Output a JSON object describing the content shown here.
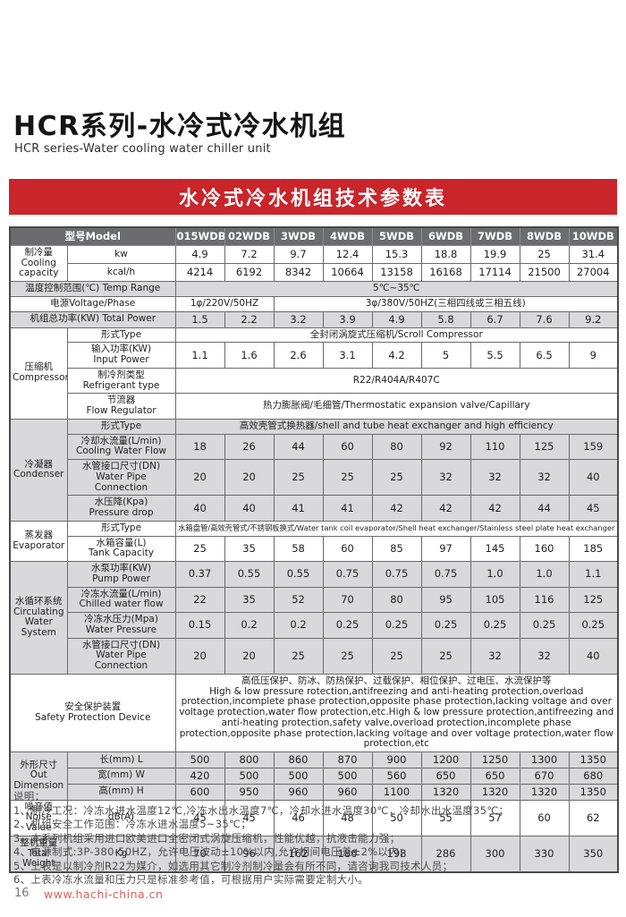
{
  "page": {
    "title": "HCR系列-水冷式冷水机组",
    "subtitle": "HCR series-Water cooling water chiller unit"
  },
  "banner": {
    "title": "水冷式冷水机组技术参数表"
  },
  "colors": {
    "banner_red": "#c9252b",
    "table_header_gray": "#6b6c6e",
    "row_shade_gray": "#d9d9db",
    "url_red": "#d8605a"
  },
  "table": {
    "rows": [
      {
        "head": true,
        "cells": [
          {
            "t": "型号Model",
            "cs": 2
          },
          {
            "t": "015WDB"
          },
          {
            "t": "02WDB"
          },
          {
            "t": "3WDB"
          },
          {
            "t": "4WDB"
          },
          {
            "t": "5WDB"
          },
          {
            "t": "6WDB"
          },
          {
            "t": "7WDB"
          },
          {
            "t": "8WDB"
          },
          {
            "t": "10WDB"
          }
        ]
      },
      {
        "cells": [
          {
            "t": "制冷量\nCooling capacity",
            "rs": 2,
            "c": "lbl"
          },
          {
            "t": "kw",
            "c": "sub"
          },
          {
            "t": "4.9",
            "c": "num"
          },
          {
            "t": "7.2",
            "c": "num"
          },
          {
            "t": "9.7",
            "c": "num"
          },
          {
            "t": "12.4",
            "c": "num"
          },
          {
            "t": "15.3",
            "c": "num"
          },
          {
            "t": "18.8",
            "c": "num"
          },
          {
            "t": "19.9",
            "c": "num"
          },
          {
            "t": "25",
            "c": "num"
          },
          {
            "t": "31.4",
            "c": "num"
          }
        ]
      },
      {
        "cells": [
          {
            "t": "kcal/h",
            "c": "sub"
          },
          {
            "t": "4214",
            "c": "num"
          },
          {
            "t": "6192",
            "c": "num"
          },
          {
            "t": "8342",
            "c": "num"
          },
          {
            "t": "10664",
            "c": "num"
          },
          {
            "t": "13158",
            "c": "num"
          },
          {
            "t": "16168",
            "c": "num"
          },
          {
            "t": "17114",
            "c": "num"
          },
          {
            "t": "21500",
            "c": "num"
          },
          {
            "t": "27004",
            "c": "num"
          }
        ]
      },
      {
        "shade": true,
        "cells": [
          {
            "t": "温度控制范围(℃) Temp Range",
            "cs": 2,
            "c": "lbl"
          },
          {
            "t": "5℃~35℃",
            "cs": 9,
            "c": "txt"
          }
        ]
      },
      {
        "cells": [
          {
            "t": "电源Voltage/Phase",
            "cs": 2,
            "c": "lbl"
          },
          {
            "t": "1φ/220V/50HZ",
            "cs": 2,
            "c": "txt"
          },
          {
            "t": "3φ/380V/50HZ(三相四线或三相五线)",
            "cs": 7,
            "c": "txt"
          }
        ]
      },
      {
        "shade": true,
        "cells": [
          {
            "t": "机组总功率(KW) Total Power",
            "cs": 2,
            "c": "lbl"
          },
          {
            "t": "1.5",
            "c": "num"
          },
          {
            "t": "2.2",
            "c": "num"
          },
          {
            "t": "3.2",
            "c": "num"
          },
          {
            "t": "3.9",
            "c": "num"
          },
          {
            "t": "4.9",
            "c": "num"
          },
          {
            "t": "5.8",
            "c": "num"
          },
          {
            "t": "6.7",
            "c": "num"
          },
          {
            "t": "7.6",
            "c": "num"
          },
          {
            "t": "9.2",
            "c": "num"
          }
        ]
      },
      {
        "cells": [
          {
            "t": "压缩机\nCompressor",
            "rs": 4,
            "c": "lbl"
          },
          {
            "t": "形式Type",
            "c": "sub"
          },
          {
            "t": "全封闭涡旋式压缩机/Scroll Compressor",
            "cs": 9,
            "c": "txt"
          }
        ]
      },
      {
        "cells": [
          {
            "t": "输入功率(KW)\nInput Power",
            "c": "sub"
          },
          {
            "t": "1.1",
            "c": "num"
          },
          {
            "t": "1.6",
            "c": "num"
          },
          {
            "t": "2.6",
            "c": "num"
          },
          {
            "t": "3.1",
            "c": "num"
          },
          {
            "t": "4.2",
            "c": "num"
          },
          {
            "t": "5",
            "c": "num"
          },
          {
            "t": "5.5",
            "c": "num"
          },
          {
            "t": "6.5",
            "c": "num"
          },
          {
            "t": "9",
            "c": "num"
          }
        ]
      },
      {
        "cells": [
          {
            "t": "制冷剂类型\nRefrigerant type",
            "c": "sub"
          },
          {
            "t": "R22/R404A/R407C",
            "cs": 9,
            "c": "txt"
          }
        ]
      },
      {
        "cells": [
          {
            "t": "节流器\nFlow Regulator",
            "c": "sub"
          },
          {
            "t": "热力膨胀阀/毛细管/Thermostatic expansion valve/Capillary",
            "cs": 9,
            "c": "txt"
          }
        ]
      },
      {
        "shade": true,
        "cells": [
          {
            "t": "冷凝器\nCondenser",
            "rs": 4,
            "c": "lbl"
          },
          {
            "t": "形式Type",
            "c": "sub"
          },
          {
            "t": "高效壳管式换热器/shell and tube heat exchanger and high efficiency",
            "cs": 9,
            "c": "txt"
          }
        ]
      },
      {
        "shade": true,
        "cells": [
          {
            "t": "冷却水流量(L/min)\nCooling Water Flow",
            "c": "sub"
          },
          {
            "t": "18",
            "c": "num"
          },
          {
            "t": "26",
            "c": "num"
          },
          {
            "t": "44",
            "c": "num"
          },
          {
            "t": "60",
            "c": "num"
          },
          {
            "t": "80",
            "c": "num"
          },
          {
            "t": "92",
            "c": "num"
          },
          {
            "t": "110",
            "c": "num"
          },
          {
            "t": "125",
            "c": "num"
          },
          {
            "t": "159",
            "c": "num"
          }
        ]
      },
      {
        "shade": true,
        "cells": [
          {
            "t": "水管接口尺寸(DN)\nWater Pipe Connection",
            "c": "sub"
          },
          {
            "t": "20",
            "c": "num"
          },
          {
            "t": "20",
            "c": "num"
          },
          {
            "t": "25",
            "c": "num"
          },
          {
            "t": "25",
            "c": "num"
          },
          {
            "t": "25",
            "c": "num"
          },
          {
            "t": "32",
            "c": "num"
          },
          {
            "t": "32",
            "c": "num"
          },
          {
            "t": "32",
            "c": "num"
          },
          {
            "t": "40",
            "c": "num"
          }
        ]
      },
      {
        "shade": true,
        "cells": [
          {
            "t": "水压降(Kpa)\nPressure drop",
            "c": "sub"
          },
          {
            "t": "40",
            "c": "num"
          },
          {
            "t": "40",
            "c": "num"
          },
          {
            "t": "41",
            "c": "num"
          },
          {
            "t": "41",
            "c": "num"
          },
          {
            "t": "42",
            "c": "num"
          },
          {
            "t": "42",
            "c": "num"
          },
          {
            "t": "42",
            "c": "num"
          },
          {
            "t": "44",
            "c": "num"
          },
          {
            "t": "45",
            "c": "num"
          }
        ]
      },
      {
        "cells": [
          {
            "t": "蒸发器\nEvaporator",
            "rs": 2,
            "c": "lbl"
          },
          {
            "t": "形式Type",
            "c": "sub"
          },
          {
            "t": "水箱盘管/高效壳管式/不锈钢板换式/Water tank coil evaporator/Shell heat exchanger/Stainless steel plate heat exchanger",
            "cs": 9,
            "c": "sm"
          }
        ]
      },
      {
        "cells": [
          {
            "t": "水箱容量(L)\nTank Capacity",
            "c": "sub"
          },
          {
            "t": "25",
            "c": "num"
          },
          {
            "t": "35",
            "c": "num"
          },
          {
            "t": "58",
            "c": "num"
          },
          {
            "t": "60",
            "c": "num"
          },
          {
            "t": "85",
            "c": "num"
          },
          {
            "t": "97",
            "c": "num"
          },
          {
            "t": "145",
            "c": "num"
          },
          {
            "t": "160",
            "c": "num"
          },
          {
            "t": "185",
            "c": "num"
          }
        ]
      },
      {
        "shade": true,
        "cells": [
          {
            "t": "水循环系统\nCirculating\nWater System",
            "rs": 4,
            "c": "lbl"
          },
          {
            "t": "水泵功率(KW)\nPump Power",
            "c": "sub"
          },
          {
            "t": "0.37",
            "c": "num"
          },
          {
            "t": "0.55",
            "c": "num"
          },
          {
            "t": "0.55",
            "c": "num"
          },
          {
            "t": "0.75",
            "c": "num"
          },
          {
            "t": "0.75",
            "c": "num"
          },
          {
            "t": "0.75",
            "c": "num"
          },
          {
            "t": "1.0",
            "c": "num"
          },
          {
            "t": "1.0",
            "c": "num"
          },
          {
            "t": "1.1",
            "c": "num"
          }
        ]
      },
      {
        "shade": true,
        "cells": [
          {
            "t": "冷冻水流量(L/min)\nChilled water flow",
            "c": "sub"
          },
          {
            "t": "22",
            "c": "num"
          },
          {
            "t": "35",
            "c": "num"
          },
          {
            "t": "52",
            "c": "num"
          },
          {
            "t": "70",
            "c": "num"
          },
          {
            "t": "80",
            "c": "num"
          },
          {
            "t": "95",
            "c": "num"
          },
          {
            "t": "105",
            "c": "num"
          },
          {
            "t": "116",
            "c": "num"
          },
          {
            "t": "125",
            "c": "num"
          }
        ]
      },
      {
        "shade": true,
        "cells": [
          {
            "t": "冷冻水压力(Mpa)\nWater Pressure",
            "c": "sub"
          },
          {
            "t": "0.15",
            "c": "num"
          },
          {
            "t": "0.2",
            "c": "num"
          },
          {
            "t": "0.2",
            "c": "num"
          },
          {
            "t": "0.25",
            "c": "num"
          },
          {
            "t": "0.25",
            "c": "num"
          },
          {
            "t": "0.25",
            "c": "num"
          },
          {
            "t": "0.25",
            "c": "num"
          },
          {
            "t": "0.25",
            "c": "num"
          },
          {
            "t": "0.25",
            "c": "num"
          }
        ]
      },
      {
        "shade": true,
        "cells": [
          {
            "t": "水管接口尺寸(DN)\nWater Pipe Connection",
            "c": "sub"
          },
          {
            "t": "20",
            "c": "num"
          },
          {
            "t": "20",
            "c": "num"
          },
          {
            "t": "25",
            "c": "num"
          },
          {
            "t": "25",
            "c": "num"
          },
          {
            "t": "25",
            "c": "num"
          },
          {
            "t": "25",
            "c": "num"
          },
          {
            "t": "32",
            "c": "num"
          },
          {
            "t": "32",
            "c": "num"
          },
          {
            "t": "40",
            "c": "num"
          }
        ]
      },
      {
        "cells": [
          {
            "t": "安全保护装置\nSafety Protection Device",
            "cs": 2,
            "c": "lbl"
          },
          {
            "t": "高低压保护、防冰、防热保护、过载保护、相位保护、过电压、水流保护等\nHigh & low pressure rotection,antifreezing and anti-heating protection,overload protection,incomplete phase protection,opposite phase protection,lacking voltage and over voltage protection,water flow protection,etc.High & low pressure protection,antifreezing and anti-heating protection,safety valve,overload protection,incomplete phase protection,opposite phase protection,lacking voltage and over voltage protection,water flow protection,etc",
            "cs": 9,
            "c": "txtL"
          }
        ]
      },
      {
        "shade": true,
        "cells": [
          {
            "t": "外形尺寸\nOut Dimension",
            "rs": 3,
            "c": "lbl"
          },
          {
            "t": "长(mm)  L",
            "c": "sub"
          },
          {
            "t": "500",
            "c": "num"
          },
          {
            "t": "800",
            "c": "num"
          },
          {
            "t": "860",
            "c": "num"
          },
          {
            "t": "870",
            "c": "num"
          },
          {
            "t": "900",
            "c": "num"
          },
          {
            "t": "1200",
            "c": "num"
          },
          {
            "t": "1250",
            "c": "num"
          },
          {
            "t": "1300",
            "c": "num"
          },
          {
            "t": "1350",
            "c": "num"
          }
        ]
      },
      {
        "shade": true,
        "cells": [
          {
            "t": "宽(mm)  W",
            "c": "sub"
          },
          {
            "t": "420",
            "c": "num"
          },
          {
            "t": "500",
            "c": "num"
          },
          {
            "t": "500",
            "c": "num"
          },
          {
            "t": "500",
            "c": "num"
          },
          {
            "t": "560",
            "c": "num"
          },
          {
            "t": "650",
            "c": "num"
          },
          {
            "t": "650",
            "c": "num"
          },
          {
            "t": "670",
            "c": "num"
          },
          {
            "t": "680",
            "c": "num"
          }
        ]
      },
      {
        "shade": true,
        "cells": [
          {
            "t": "高(mm)  H",
            "c": "sub"
          },
          {
            "t": "600",
            "c": "num"
          },
          {
            "t": "950",
            "c": "num"
          },
          {
            "t": "960",
            "c": "num"
          },
          {
            "t": "960",
            "c": "num"
          },
          {
            "t": "1100",
            "c": "num"
          },
          {
            "t": "1320",
            "c": "num"
          },
          {
            "t": "1320",
            "c": "num"
          },
          {
            "t": "1320",
            "c": "num"
          },
          {
            "t": "1350",
            "c": "num"
          }
        ]
      },
      {
        "cells": [
          {
            "t": "噪音值\nNoise Value",
            "c": "lbl"
          },
          {
            "t": "dB(A)",
            "c": "sub"
          },
          {
            "t": "45",
            "c": "num"
          },
          {
            "t": "45",
            "c": "num"
          },
          {
            "t": "46",
            "c": "num"
          },
          {
            "t": "48",
            "c": "num"
          },
          {
            "t": "50",
            "c": "num"
          },
          {
            "t": "55",
            "c": "num"
          },
          {
            "t": "57",
            "c": "num"
          },
          {
            "t": "60",
            "c": "num"
          },
          {
            "t": "62",
            "c": "num"
          }
        ]
      },
      {
        "shade": true,
        "cells": [
          {
            "t": "整机重量\nTotal Weight",
            "c": "lbl"
          },
          {
            "t": "Kg",
            "c": "sub"
          },
          {
            "t": "70",
            "c": "num"
          },
          {
            "t": "96",
            "c": "num"
          },
          {
            "t": "162",
            "c": "num"
          },
          {
            "t": "186",
            "c": "num"
          },
          {
            "t": "198",
            "c": "num"
          },
          {
            "t": "286",
            "c": "num"
          },
          {
            "t": "300",
            "c": "num"
          },
          {
            "t": "330",
            "c": "num"
          },
          {
            "t": "350",
            "c": "num"
          }
        ]
      }
    ]
  },
  "notes": {
    "heading": "说明：",
    "lines": [
      "1、制冷工况：冷冻水进水温度12℃,冷冻水出水温度7℃，冷却水进水温度30℃，冷却水出水温度35℃；",
      "2、机组安全工作范围：冷冻水进水温度5~35℃；",
      "3、本系列机组采用进口欧美进口全密闭式涡旋压缩机，性能优越，抗液击能力强；",
      "4、电源制式:3P-380-50HZ，允许电压波动±10%以内,允许相间电压差±2%以内；",
      "5、上表是以制冷剂R22为媒介，如选用其它制冷剂制冷量会有所不同，请咨询我司技术人员；",
      "6、上表冷冻水流量和压力只是标准参考值，可根据用户实际需要定制大小。"
    ]
  },
  "footer": {
    "page_number": "16",
    "url": "www.hachi-china.cn"
  }
}
